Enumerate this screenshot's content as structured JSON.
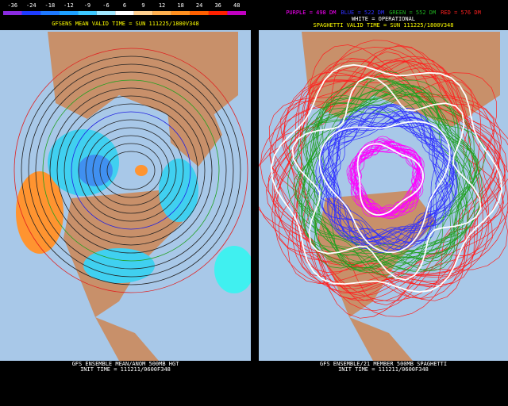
{
  "colorbar": {
    "labels": [
      "-36",
      "-24",
      "-18",
      "-12",
      "-9",
      "-6",
      "6",
      "9",
      "12",
      "18",
      "24",
      "36",
      "48"
    ],
    "colors": [
      "#8a2be2",
      "#1e3cff",
      "#1e78ff",
      "#1ea0ff",
      "#3cc8ff",
      "#a0e8ff",
      "#ffffff",
      "#ffd090",
      "#ffb050",
      "#ff9020",
      "#ff6000",
      "#ff2000",
      "#c000c0"
    ]
  },
  "left_panel": {
    "title": "GFSENS MEAN VALID TIME = SUN 111225/1800V348",
    "footer": [
      "GFS ENSEMBLE MEAN/ANOM 500MB HGT",
      "INIT TIME = 111211/0600F348"
    ]
  },
  "right_panel": {
    "legend": [
      {
        "text": "PURPLE = 498 DM",
        "color": "#ff00ff"
      },
      {
        "text": "BLUE = 522 DM",
        "color": "#3030ff"
      },
      {
        "text": "GREEN = 552 DM",
        "color": "#20b020"
      },
      {
        "text": "RED = 576 DM",
        "color": "#ff2020"
      }
    ],
    "operational": "WHITE = OPERATIONAL",
    "title": "SPAGHETTI VALID TIME = SUN 111225/1800V348",
    "footer": [
      "GFS ENSEMBLE/21 MEMBER 500MB SPAGHETTI",
      "INIT TIME = 111211/0600F348"
    ]
  }
}
